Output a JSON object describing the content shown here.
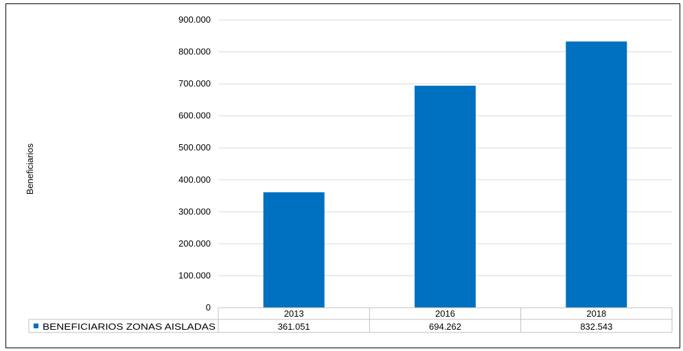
{
  "chart_data": {
    "type": "bar",
    "categories": [
      "2013",
      "2016",
      "2018"
    ],
    "series": [
      {
        "name": "BENEFICIARIOS ZONAS AISLADAS",
        "values": [
          361051,
          694262,
          832543
        ]
      }
    ],
    "data_labels": [
      "361.051",
      "694.262",
      "832.543"
    ],
    "y_ticks": [
      "0",
      "100.000",
      "200.000",
      "300.000",
      "400.000",
      "500.000",
      "600.000",
      "700.000",
      "800.000",
      "900.000"
    ],
    "ylabel": "Beneficiarios",
    "xlabel": "",
    "title": "",
    "ylim": [
      0,
      900000
    ],
    "grid": true,
    "legend": "data-table",
    "colors": {
      "bar": "#0070C0",
      "grid": "#D9D9D9",
      "table_border": "#BFBFBF",
      "frame": "#000000"
    }
  }
}
